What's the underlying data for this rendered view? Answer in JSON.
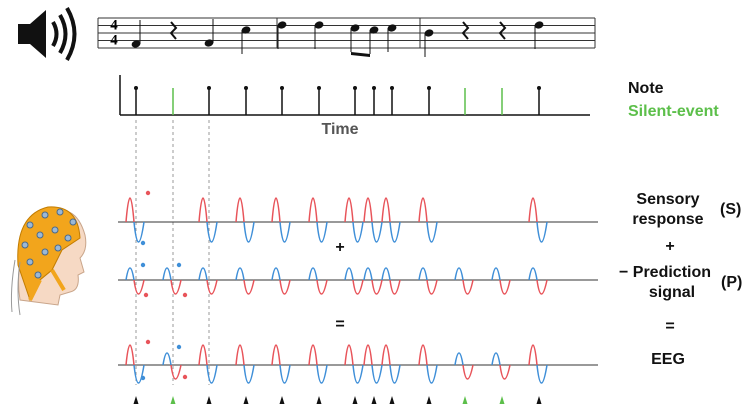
{
  "time_signature": [
    "4",
    "4"
  ],
  "legend": {
    "note": "Note",
    "silent": "Silent-event"
  },
  "axis": {
    "label": "Time"
  },
  "rows": [
    {
      "lines": [
        "Sensory",
        "response"
      ],
      "tag": "(S)"
    },
    {
      "lines": [
        "− Prediction",
        "signal"
      ],
      "tag": "(P)"
    },
    {
      "lines": [
        "EEG"
      ]
    }
  ],
  "operators": [
    "+",
    "="
  ]
}
